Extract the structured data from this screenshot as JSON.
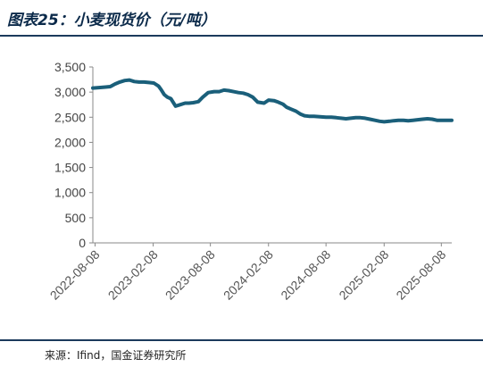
{
  "title": "图表25：小麦现货价（元/吨）",
  "source": "来源：Ifind，国金证券研究所",
  "colors": {
    "line": "#1a5f7a",
    "axis": "#8a8a8a",
    "title": "#0b2a4a",
    "rule": "#1b3a5c"
  },
  "chart_data": {
    "type": "line",
    "title": "",
    "xlabel": "",
    "ylabel": "",
    "ylim": [
      0,
      3500
    ],
    "yticks": [
      0,
      500,
      1000,
      1500,
      2000,
      2500,
      3000,
      3500
    ],
    "ytick_labels": [
      "0",
      "500",
      "1,000",
      "1,500",
      "2,000",
      "2,500",
      "3,000",
      "3,500"
    ],
    "xlim": [
      "2022-08-01",
      "2025-09-10"
    ],
    "xticks": [
      "2022-08-08",
      "2023-02-08",
      "2023-08-08",
      "2024-02-08",
      "2024-08-08",
      "2025-02-08",
      "2025-08-08"
    ],
    "grid": false,
    "legend": "none",
    "series": [
      {
        "x": [
          "2022-08-01",
          "2022-08-20",
          "2022-09-10",
          "2022-09-25",
          "2022-10-10",
          "2022-10-25",
          "2022-11-10",
          "2022-11-25",
          "2022-12-10",
          "2022-12-25",
          "2023-01-10",
          "2023-01-25",
          "2023-02-10",
          "2023-02-25",
          "2023-03-05",
          "2023-03-15",
          "2023-03-25",
          "2023-04-05",
          "2023-04-20",
          "2023-05-05",
          "2023-05-20",
          "2023-06-01",
          "2023-06-15",
          "2023-07-01",
          "2023-07-15",
          "2023-08-01",
          "2023-08-20",
          "2023-09-05",
          "2023-09-20",
          "2023-10-05",
          "2023-10-20",
          "2023-11-05",
          "2023-11-20",
          "2023-12-05",
          "2023-12-20",
          "2024-01-05",
          "2024-01-25",
          "2024-02-08",
          "2024-02-25",
          "2024-03-10",
          "2024-03-25",
          "2024-04-05",
          "2024-04-20",
          "2024-05-05",
          "2024-05-20",
          "2024-06-01",
          "2024-06-15",
          "2024-07-01",
          "2024-07-20",
          "2024-08-08",
          "2024-08-25",
          "2024-09-10",
          "2024-09-25",
          "2024-10-10",
          "2024-10-25",
          "2024-11-10",
          "2024-11-25",
          "2024-12-10",
          "2024-12-25",
          "2025-01-10",
          "2025-01-25",
          "2025-02-08",
          "2025-02-25",
          "2025-03-10",
          "2025-03-25",
          "2025-04-10",
          "2025-04-25",
          "2025-05-10",
          "2025-05-25",
          "2025-06-10",
          "2025-06-25",
          "2025-07-10",
          "2025-07-25",
          "2025-08-08",
          "2025-08-25",
          "2025-09-10"
        ],
        "y": [
          3080,
          3090,
          3100,
          3110,
          3160,
          3200,
          3230,
          3240,
          3210,
          3200,
          3200,
          3190,
          3180,
          3120,
          3050,
          2950,
          2900,
          2870,
          2720,
          2750,
          2780,
          2780,
          2790,
          2810,
          2900,
          2990,
          3010,
          3010,
          3040,
          3030,
          3010,
          2990,
          2980,
          2950,
          2900,
          2800,
          2780,
          2840,
          2830,
          2800,
          2760,
          2700,
          2660,
          2620,
          2560,
          2530,
          2520,
          2520,
          2510,
          2500,
          2500,
          2490,
          2480,
          2470,
          2480,
          2490,
          2490,
          2480,
          2460,
          2440,
          2420,
          2410,
          2420,
          2430,
          2440,
          2440,
          2430,
          2440,
          2450,
          2460,
          2470,
          2460,
          2440,
          2440,
          2440,
          2440
        ]
      }
    ]
  }
}
